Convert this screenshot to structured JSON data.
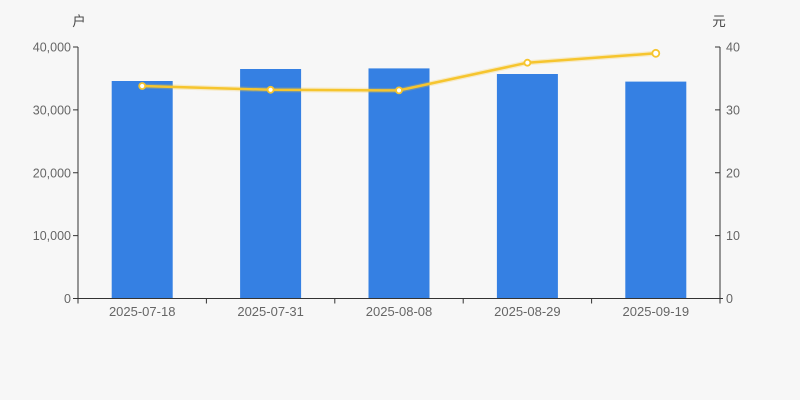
{
  "chart_data": {
    "type": "bar",
    "title": "",
    "categories": [
      "2025-07-18",
      "2025-07-31",
      "2025-08-08",
      "2025-08-29",
      "2025-09-19"
    ],
    "series": [
      {
        "name": "户",
        "type": "bar",
        "axis": "left",
        "color": "#3580e3",
        "values": [
          34600,
          36500,
          36600,
          35700,
          34500
        ]
      },
      {
        "name": "元",
        "type": "line",
        "axis": "right",
        "color": "#f6c52e",
        "point_fill": "#ffffff",
        "values": [
          33.8,
          33.2,
          33.1,
          37.5,
          39.0
        ]
      }
    ],
    "left_axis": {
      "label": "户",
      "min": 0,
      "max": 40000,
      "ticks": [
        0,
        10000,
        20000,
        30000,
        40000
      ],
      "tick_labels": [
        "0",
        "10,000",
        "20,000",
        "30,000",
        "40,000"
      ]
    },
    "right_axis": {
      "label": "元",
      "min": 0,
      "max": 40,
      "ticks": [
        0,
        10,
        20,
        30,
        40
      ],
      "tick_labels": [
        "0",
        "10",
        "20",
        "30",
        "40"
      ]
    },
    "legend": false,
    "grid_lines": false,
    "colors": {
      "background": "#f7f7f7",
      "axis_line": "#333333",
      "tick_text": "#666666",
      "axis_unit_text": "#4a4a4a"
    }
  }
}
